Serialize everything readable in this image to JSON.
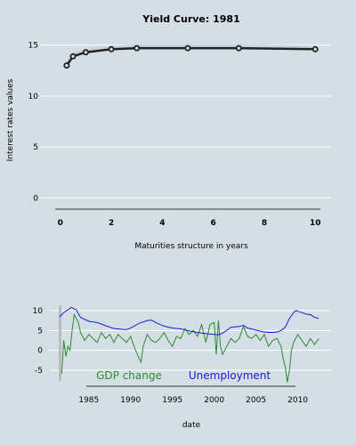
{
  "chart_data": [
    {
      "type": "line",
      "title": "Yield Curve:  1981",
      "xlabel": "Maturities structure in years",
      "ylabel": "Interest rates values",
      "xlim": [
        -0.2,
        10.2
      ],
      "ylim": [
        -0.5,
        15.5
      ],
      "x_ticks": [
        0,
        2,
        4,
        6,
        8,
        10
      ],
      "y_ticks": [
        0,
        5,
        10,
        15
      ],
      "grid": true,
      "series": [
        {
          "x": [
            0.25,
            0.5,
            1,
            2,
            3,
            5,
            7,
            10
          ],
          "values": [
            13.0,
            13.9,
            14.3,
            14.6,
            14.7,
            14.7,
            14.7,
            14.6
          ],
          "color": "#222222"
        }
      ]
    },
    {
      "type": "line",
      "xlabel": "date",
      "ylim": [
        -7,
        12
      ],
      "x_ticks": [
        1985,
        1990,
        1995,
        2000,
        2005,
        2010
      ],
      "y_ticks": [
        -5,
        0,
        5,
        10
      ],
      "grid": true,
      "legend": "bottom-inside",
      "series": [
        {
          "name": "GDP change",
          "color": "#2e8b2e",
          "x": [
            1981.75,
            1982.0,
            1982.25,
            1982.5,
            1982.75,
            1983.0,
            1983.25,
            1983.5,
            1983.75,
            1984.0,
            1984.5,
            1985.0,
            1985.5,
            1986.0,
            1986.5,
            1987.0,
            1987.5,
            1988.0,
            1988.5,
            1989.0,
            1989.5,
            1990.0,
            1990.5,
            1991.0,
            1991.25,
            1991.5,
            1992.0,
            1992.5,
            1993.0,
            1993.5,
            1994.0,
            1994.5,
            1995.0,
            1995.5,
            1996.0,
            1996.5,
            1997.0,
            1997.5,
            1998.0,
            1998.5,
            1999.0,
            1999.5,
            2000.0,
            2000.25,
            2000.5,
            2000.75,
            2001.0,
            2001.5,
            2002.0,
            2002.5,
            2003.0,
            2003.5,
            2004.0,
            2004.5,
            2005.0,
            2005.5,
            2006.0,
            2006.5,
            2007.0,
            2007.5,
            2008.0,
            2008.25,
            2008.5,
            2008.75,
            2009.0,
            2009.25,
            2009.5,
            2010.0,
            2010.5,
            2011.0,
            2011.5,
            2012.0,
            2012.5
          ],
          "values": [
            -6,
            2.5,
            -1.5,
            1,
            0,
            5,
            9,
            8,
            7,
            4.5,
            2.5,
            4,
            3,
            2,
            4.5,
            3,
            4,
            2,
            4,
            3,
            2,
            3.5,
            0.5,
            -2,
            -3,
            1,
            4,
            2.5,
            2,
            3,
            4.5,
            2.5,
            1,
            3.5,
            3,
            5.5,
            4,
            5,
            3.5,
            6.5,
            2,
            6.5,
            7,
            -1,
            7.5,
            1,
            -1,
            1,
            3,
            2,
            3,
            6,
            3.5,
            3,
            4,
            2.5,
            4,
            1,
            2.5,
            3,
            1,
            -2,
            -4,
            -8,
            -5,
            0,
            2,
            4,
            2.5,
            1,
            3,
            1.5,
            3
          ]
        },
        {
          "name": "Unemployment",
          "color": "#1a1adc",
          "x": [
            1981.5,
            1982.0,
            1982.5,
            1982.9,
            1983.5,
            1984.0,
            1985.0,
            1986.0,
            1987.0,
            1988.0,
            1989.0,
            1989.5,
            1990.0,
            1991.0,
            1992.0,
            1992.5,
            1993.0,
            1994.0,
            1995.0,
            1996.0,
            1997.0,
            1998.0,
            1999.0,
            2000.0,
            2000.5,
            2001.0,
            2002.0,
            2003.0,
            2003.5,
            2004.0,
            2005.0,
            2006.0,
            2007.0,
            2007.5,
            2008.0,
            2008.5,
            2009.0,
            2009.5,
            2009.8,
            2010.0,
            2010.5,
            2011.0,
            2011.5,
            2012.0,
            2012.5
          ],
          "values": [
            8.4,
            9.5,
            10.2,
            10.8,
            10.2,
            8.3,
            7.3,
            7.0,
            6.2,
            5.5,
            5.3,
            5.2,
            5.6,
            6.8,
            7.5,
            7.6,
            7.0,
            6.1,
            5.6,
            5.4,
            4.9,
            4.5,
            4.2,
            4.0,
            3.9,
            4.3,
            5.8,
            6.0,
            6.3,
            5.6,
            5.1,
            4.6,
            4.5,
            4.6,
            5.0,
            5.8,
            8.0,
            9.5,
            10.0,
            9.8,
            9.5,
            9.1,
            9.0,
            8.3,
            8.0
          ]
        }
      ]
    }
  ]
}
